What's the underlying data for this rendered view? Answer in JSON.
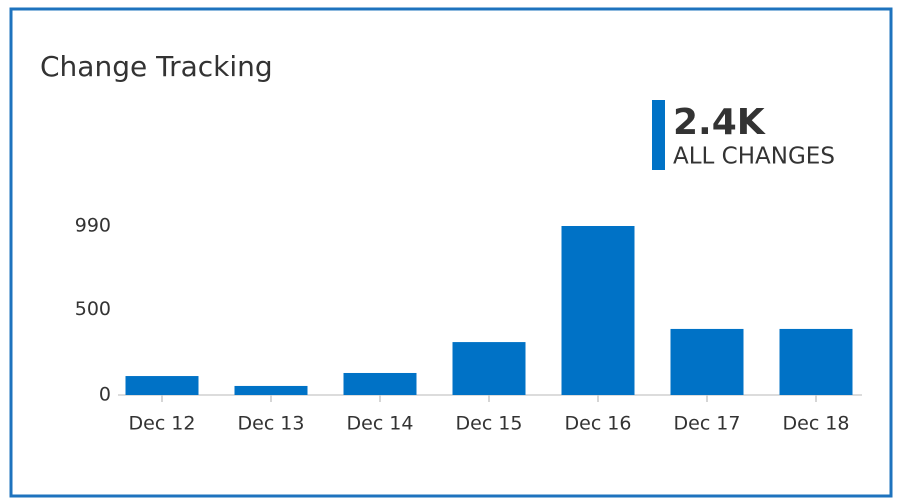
{
  "chart_data": {
    "type": "bar",
    "title": "Change Tracking",
    "summary_value": "2.4K",
    "summary_label": "ALL CHANGES",
    "categories": [
      "Dec 12",
      "Dec 13",
      "Dec 14",
      "Dec 15",
      "Dec 16",
      "Dec 17",
      "Dec 18"
    ],
    "values": [
      111,
      53,
      129,
      310,
      990,
      387,
      387
    ],
    "color": "#0072c6",
    "ylim": [
      0,
      990
    ],
    "yticks": [
      0,
      500,
      990
    ],
    "grid": false
  }
}
